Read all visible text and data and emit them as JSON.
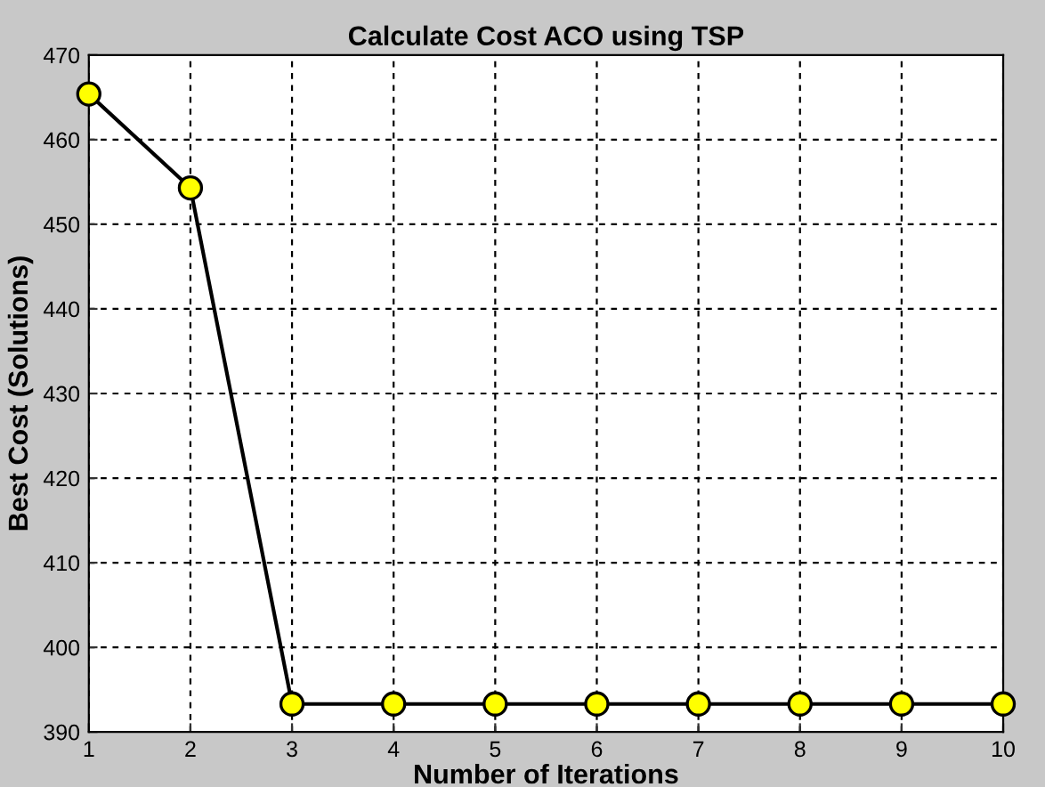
{
  "chart_data": {
    "type": "line",
    "title": "Calculate Cost ACO using TSP",
    "xlabel": "Number of Iterations",
    "ylabel": "Best Cost (Solutions)",
    "x": [
      1,
      2,
      3,
      4,
      5,
      6,
      7,
      8,
      9,
      10
    ],
    "series": [
      {
        "color": "#000000",
        "colors": [
          "#ffff00",
          "#ffff00",
          "#ffff00",
          "#ffff00",
          "#ffff00",
          "#ffff00",
          "#ffff00",
          "#ffff00",
          "#ffff00",
          "#ffff00"
        ],
        "values": [
          465.4,
          454.3,
          393.3,
          393.3,
          393.3,
          393.3,
          393.3,
          393.3,
          393.3,
          393.3
        ]
      }
    ],
    "xlim": [
      1,
      10
    ],
    "xticks": [
      1,
      2,
      3,
      4,
      5,
      6,
      7,
      8,
      9,
      10
    ],
    "ylim": [
      390,
      470
    ],
    "yticks": [
      390,
      400,
      410,
      420,
      430,
      440,
      450,
      460,
      470
    ],
    "grid": true,
    "marker": "circle",
    "line_style": "solid"
  }
}
